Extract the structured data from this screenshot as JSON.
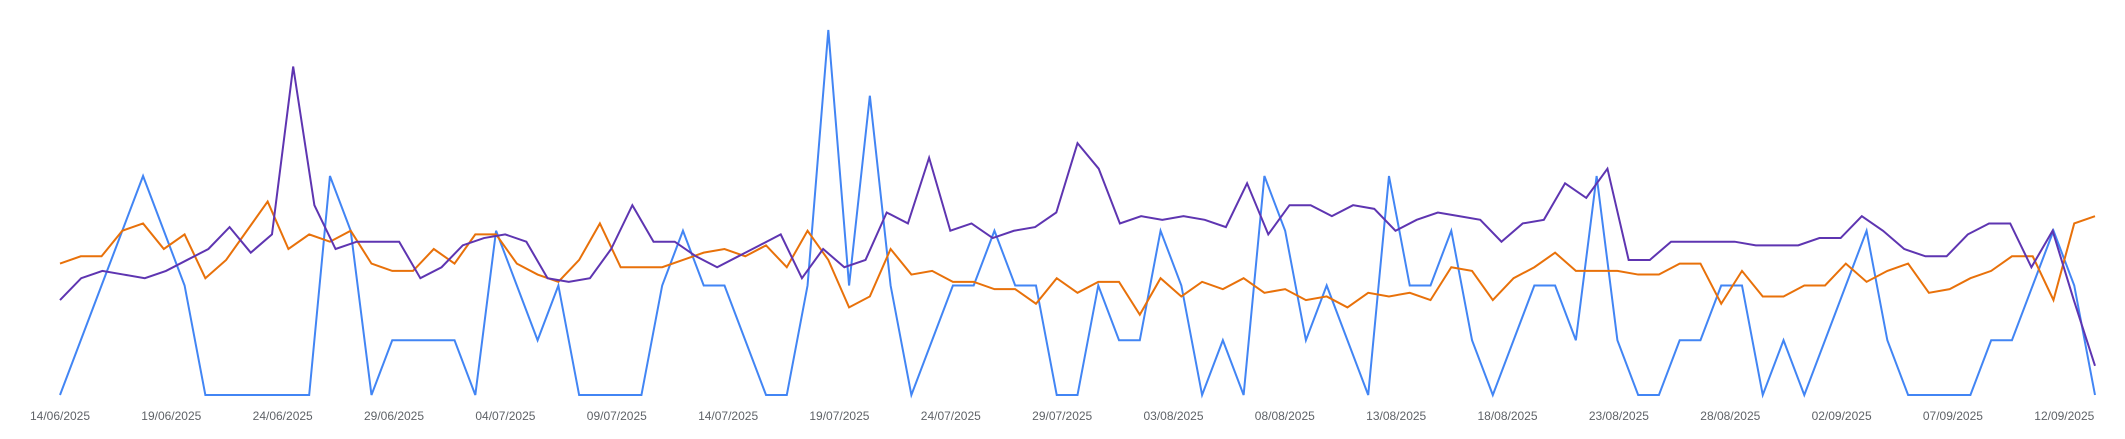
{
  "chart_data": {
    "type": "line",
    "title": "",
    "xlabel": "",
    "ylabel": "",
    "x_ticks": [
      "14/06/2025",
      "19/06/2025",
      "24/06/2025",
      "29/06/2025",
      "04/07/2025",
      "09/07/2025",
      "14/07/2025",
      "19/07/2025",
      "24/07/2025",
      "29/07/2025",
      "03/08/2025",
      "08/08/2025",
      "13/08/2025",
      "18/08/2025",
      "23/08/2025",
      "28/08/2025",
      "02/09/2025",
      "07/09/2025",
      "12/09/2025"
    ],
    "x_range": [
      "14/06/2025",
      "13/09/2025"
    ],
    "ylim": [
      0,
      100
    ],
    "grid": false,
    "legend": "none",
    "series": [
      {
        "color": "#4285f4",
        "values": [
          0,
          15,
          30,
          45,
          60,
          45,
          30,
          0,
          0,
          0,
          0,
          0,
          0,
          60,
          45,
          0,
          15,
          15,
          15,
          15,
          0,
          45,
          30,
          15,
          30,
          0,
          0,
          0,
          0,
          30,
          45,
          30,
          30,
          15,
          0,
          0,
          30,
          100,
          30,
          82,
          30,
          0,
          15,
          30,
          30,
          45,
          30,
          30,
          0,
          0,
          30,
          15,
          15,
          45,
          30,
          0,
          15,
          0,
          60,
          45,
          15,
          30,
          15,
          0,
          60,
          30,
          30,
          45,
          15,
          0,
          15,
          30,
          30,
          15,
          60,
          15,
          0,
          0,
          15,
          15,
          30,
          30,
          0,
          15,
          0,
          15,
          30,
          45,
          15,
          0,
          0,
          0,
          0,
          15,
          15,
          30,
          45,
          30,
          0
        ]
      },
      {
        "color": "#e8710a",
        "values": [
          36,
          38,
          38,
          45,
          47,
          40,
          44,
          32,
          37,
          45,
          53,
          40,
          44,
          42,
          45,
          36,
          34,
          34,
          40,
          36,
          44,
          44,
          36,
          33,
          31,
          37,
          47,
          35,
          35,
          35,
          37,
          39,
          40,
          38,
          41,
          35,
          45,
          37,
          24,
          27,
          40,
          33,
          34,
          31,
          31,
          29,
          29,
          25,
          32,
          28,
          31,
          31,
          22,
          32,
          27,
          31,
          29,
          32,
          28,
          29,
          26,
          27,
          24,
          28,
          27,
          28,
          26,
          35,
          34,
          26,
          32,
          35,
          39,
          34,
          34,
          34,
          33,
          33,
          36,
          36,
          25,
          34,
          27,
          27,
          30,
          30,
          36,
          31,
          34,
          36,
          28,
          29,
          32,
          34,
          38,
          38,
          26,
          47,
          49
        ]
      },
      {
        "color": "#5e35b1",
        "values": [
          26,
          32,
          34,
          33,
          32,
          34,
          37,
          40,
          46,
          39,
          44,
          90,
          52,
          40,
          42,
          42,
          42,
          32,
          35,
          41,
          43,
          44,
          42,
          32,
          31,
          32,
          40,
          52,
          42,
          42,
          38,
          35,
          38,
          41,
          44,
          32,
          40,
          35,
          37,
          50,
          47,
          65,
          45,
          47,
          43,
          45,
          46,
          50,
          69,
          62,
          47,
          49,
          48,
          49,
          48,
          46,
          58,
          44,
          52,
          52,
          49,
          52,
          51,
          45,
          48,
          50,
          49,
          48,
          42,
          47,
          48,
          58,
          54,
          62,
          37,
          37,
          42,
          42,
          42,
          42,
          41,
          41,
          41,
          43,
          43,
          49,
          45,
          40,
          38,
          38,
          44,
          47,
          47,
          35,
          45,
          26,
          8
        ]
      }
    ]
  }
}
